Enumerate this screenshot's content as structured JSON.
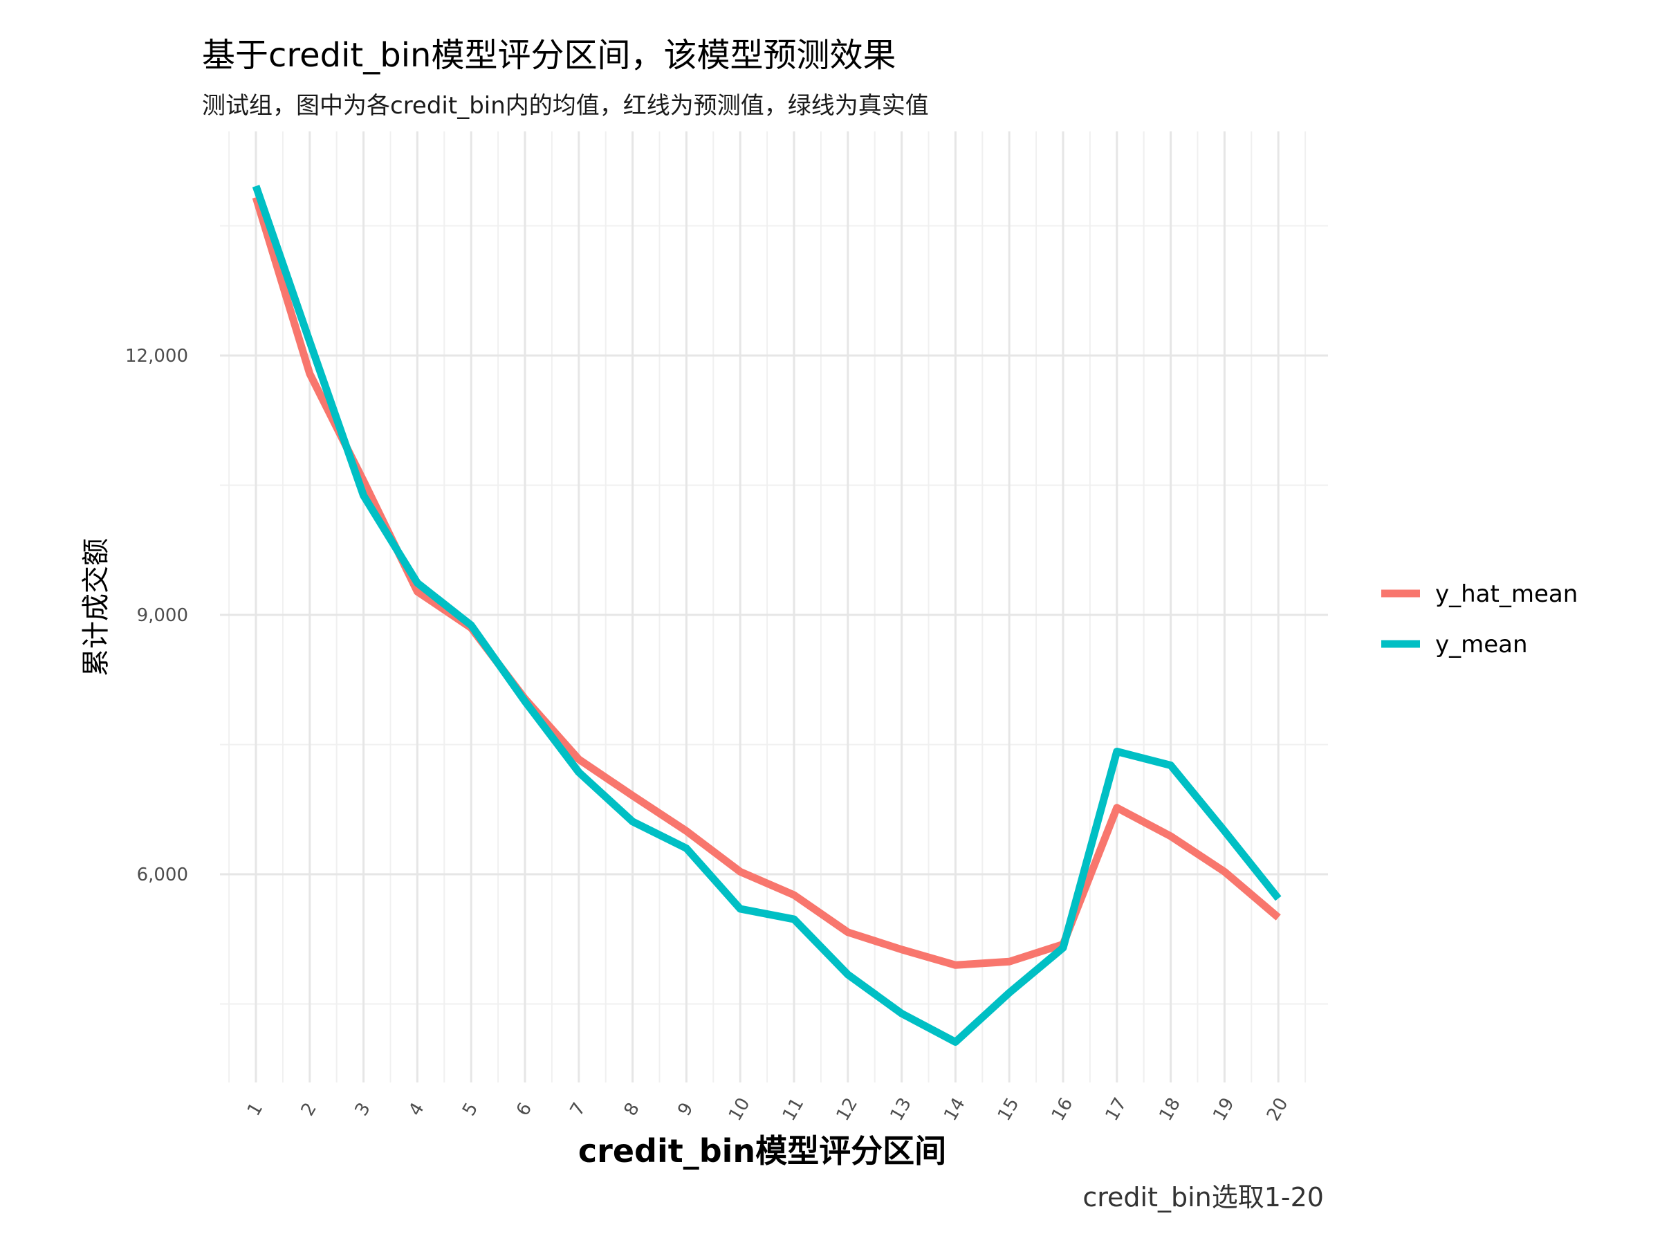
{
  "chart_data": {
    "type": "line",
    "title": "基于credit_bin模型评分区间，该模型预测效果",
    "subtitle": "测试组，图中为各credit_bin内的均值，红线为预测值，绿线为真实值",
    "xlabel": "credit_bin模型评分区间",
    "ylabel": "累计成交额",
    "caption": "credit_bin选取1-20",
    "categories": [
      "1",
      "2",
      "3",
      "4",
      "5",
      "6",
      "7",
      "8",
      "9",
      "10",
      "11",
      "12",
      "13",
      "14",
      "15",
      "16",
      "17",
      "18",
      "19",
      "20"
    ],
    "y_ticks": [
      6000,
      9000,
      12000
    ],
    "y_tick_labels": [
      "6,000",
      "9,000",
      "12,000"
    ],
    "ylim": [
      4050,
      14650
    ],
    "grid": true,
    "legend_position": "right",
    "series": [
      {
        "name": "y_hat_mean",
        "color": "#F8766D",
        "values": [
          13830,
          11790,
          10550,
          9270,
          8850,
          8030,
          7330,
          6910,
          6500,
          6030,
          5760,
          5330,
          5130,
          4950,
          4990,
          5190,
          6770,
          6440,
          6030,
          5500
        ]
      },
      {
        "name": "y_mean",
        "color": "#00BFC4",
        "values": [
          13960,
          12160,
          10380,
          9370,
          8880,
          8000,
          7180,
          6610,
          6300,
          5600,
          5480,
          4840,
          4390,
          4060,
          4630,
          5150,
          7420,
          7260,
          6500,
          5720
        ]
      }
    ]
  }
}
